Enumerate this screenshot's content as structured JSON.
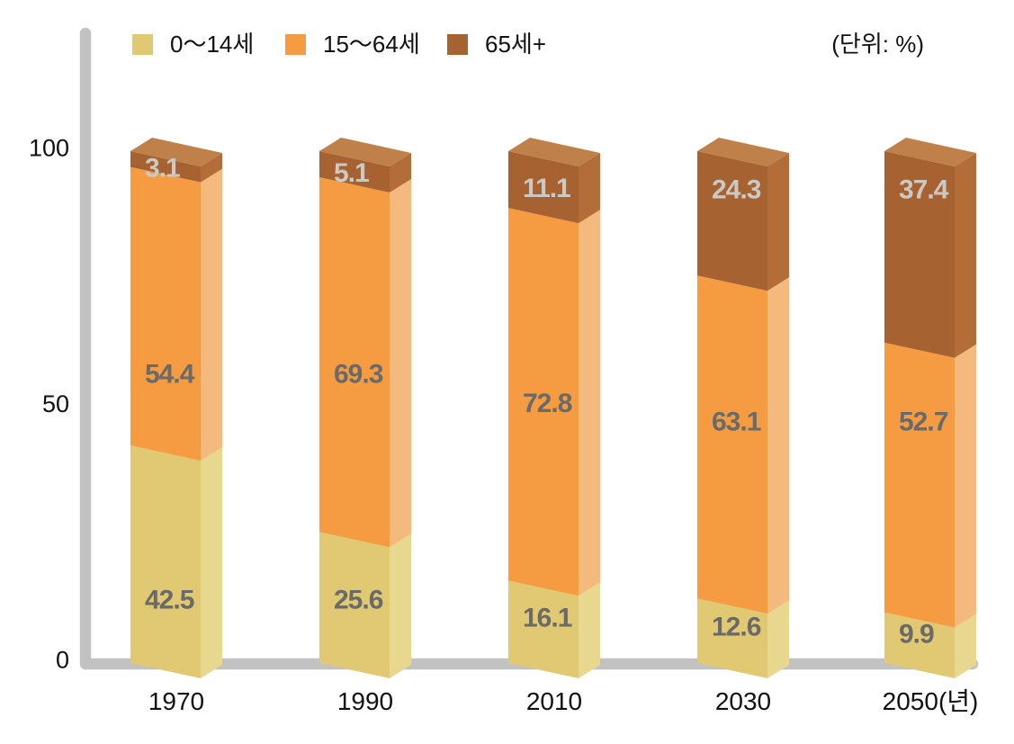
{
  "chart_data": {
    "type": "bar",
    "stacked": true,
    "title": "",
    "unit_label": "(단위: %)",
    "x_axis_suffix": "(년)",
    "categories": [
      "1970",
      "1990",
      "2010",
      "2030",
      "2050"
    ],
    "series": [
      {
        "name": "0〜14세",
        "values": [
          42.5,
          25.6,
          16.1,
          12.6,
          9.9
        ],
        "color_front": "#e0c972",
        "color_side": "#e8d88f",
        "label_color": "#6a6a68"
      },
      {
        "name": "15〜64세",
        "values": [
          54.4,
          69.3,
          72.8,
          63.1,
          52.7
        ],
        "color_front": "#f59b42",
        "color_side": "#f4ba7d",
        "label_color": "#6a6a68"
      },
      {
        "name": "65세+",
        "values": [
          3.1,
          5.1,
          11.1,
          24.3,
          37.4
        ],
        "color_front": "#a66230",
        "color_side": "#b26d38",
        "color_top": "#c08049",
        "label_color": "#cbc9c5"
      }
    ],
    "y_ticks": [
      0,
      50,
      100
    ],
    "ylim": [
      0,
      100
    ],
    "grid": false,
    "legend_position": "top",
    "axis_color": "#c2c2c2",
    "text_color": "#111111"
  }
}
